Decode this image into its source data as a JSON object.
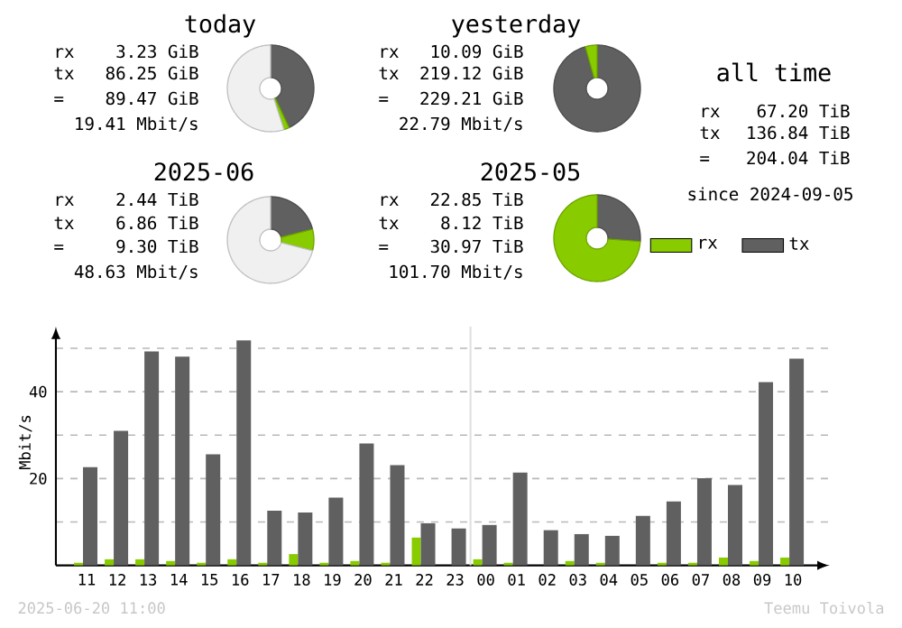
{
  "chart_data": [
    {
      "type": "donut",
      "title": "today",
      "categories": [
        null,
        null,
        null
      ],
      "values": [
        43,
        2,
        55
      ],
      "colors": [
        "#606060",
        "#88cc00",
        "#f0f0f0"
      ],
      "annotations": [
        "rx",
        "3.23 GiB",
        "tx",
        "86.25 GiB",
        "=",
        "89.47 GiB",
        "19.41 Mbit/s"
      ]
    },
    {
      "type": "donut",
      "title": "yesterday",
      "categories": [
        null,
        null,
        null
      ],
      "values": [
        95.6,
        4.4,
        0
      ],
      "colors": [
        "#606060",
        "#88cc00",
        "#f0f0f0"
      ],
      "annotations": [
        "rx",
        "10.09 GiB",
        "tx",
        "219.12 GiB",
        "=",
        "229.21 GiB",
        "22.79 Mbit/s"
      ]
    },
    {
      "type": "other",
      "title": "all time",
      "annotations": [
        "rx",
        "67.20 TiB",
        "tx",
        "136.84 TiB",
        "=",
        "204.04 TiB",
        "since 2024-09-05"
      ]
    },
    {
      "type": "donut",
      "title": "2025-06",
      "categories": [
        null,
        null,
        null
      ],
      "values": [
        21,
        8,
        71
      ],
      "colors": [
        "#606060",
        "#88cc00",
        "#f0f0f0"
      ],
      "annotations": [
        "rx",
        "2.44 TiB",
        "tx",
        "6.86 TiB",
        "=",
        "9.30 TiB",
        "48.63 Mbit/s"
      ]
    },
    {
      "type": "donut",
      "title": "2025-05",
      "categories": [
        null,
        null,
        null
      ],
      "values": [
        26.2,
        73.8,
        0
      ],
      "colors": [
        "#606060",
        "#88cc00",
        "#f0f0f0"
      ],
      "annotations": [
        "rx",
        "22.85 TiB",
        "tx",
        "8.12 TiB",
        "=",
        "30.97 TiB",
        "101.70 Mbit/s"
      ]
    },
    {
      "type": "bar",
      "ylabel": "Mbit/s",
      "categories": [
        "11",
        "12",
        "13",
        "14",
        "15",
        "16",
        "17",
        "18",
        "19",
        "20",
        "21",
        "22",
        "23",
        "00",
        "01",
        "02",
        "03",
        "04",
        "05",
        "06",
        "07",
        "08",
        "09",
        "10"
      ],
      "series": [
        {
          "name": "rx",
          "color": "#88cc00",
          "values": [
            0.6,
            1.4,
            1.4,
            1.0,
            0.6,
            1.4,
            0.6,
            2.6,
            0.6,
            1.0,
            0.6,
            6.4,
            0,
            1.4,
            0.6,
            0,
            1.0,
            0.6,
            0,
            0.6,
            0.6,
            1.8,
            1.0,
            1.8
          ]
        },
        {
          "name": "tx",
          "color": "#606060",
          "values": [
            22.6,
            31.0,
            49.3,
            48.1,
            25.6,
            51.8,
            12.6,
            12.2,
            15.6,
            28.1,
            23.1,
            9.7,
            8.5,
            9.3,
            21.4,
            8.1,
            7.2,
            6.8,
            11.4,
            14.7,
            20.1,
            18.5,
            42.2,
            47.6
          ]
        }
      ],
      "ylim": [
        0,
        55
      ],
      "yticks": [
        {
          "value": 10,
          "label": null
        },
        20,
        {
          "value": 30,
          "label": null
        },
        40,
        {
          "value": 50,
          "label": null
        }
      ],
      "grid": "y",
      "legend": "top right",
      "ref_lines": [
        {
          "axis": "x",
          "value": "00",
          "color": "#e0e0e0"
        }
      ],
      "annotations": [
        "2025-06-20 11:00",
        "Teemu Toivola"
      ]
    }
  ]
}
